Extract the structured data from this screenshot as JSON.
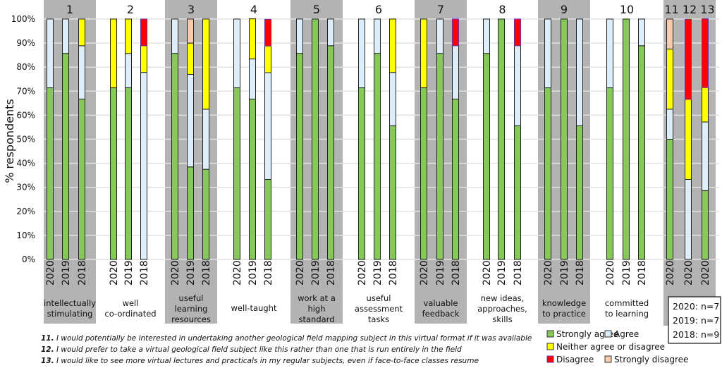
{
  "chart_data": {
    "type": "bar",
    "stacked": true,
    "ylabel": "% respondents",
    "ylim": [
      0,
      100
    ],
    "yticks": [
      "0%",
      "10%",
      "20%",
      "30%",
      "40%",
      "50%",
      "60%",
      "70%",
      "80%",
      "90%",
      "100%"
    ],
    "grid": true,
    "series": [
      {
        "name": "Strongly agree",
        "color": "#86c95a"
      },
      {
        "name": "Agree",
        "color": "#ddeefa"
      },
      {
        "name": "Neither agree or disagree",
        "color": "#ffff00"
      },
      {
        "name": "Disagree",
        "color": "#ff0000"
      },
      {
        "name": "Strongly disagree",
        "color": "#f8cbad"
      }
    ],
    "groups": [
      {
        "number": "1",
        "label": [
          "intellectually",
          "stimulating"
        ],
        "bars": [
          {
            "year": "2020",
            "values": [
              71.4,
              28.6,
              0,
              0,
              0
            ]
          },
          {
            "year": "2019",
            "values": [
              85.7,
              14.3,
              0,
              0,
              0
            ]
          },
          {
            "year": "2018",
            "values": [
              66.7,
              22.2,
              11.1,
              0,
              0
            ]
          }
        ]
      },
      {
        "number": "2",
        "label": [
          "well",
          "co-ordinated"
        ],
        "bars": [
          {
            "year": "2020",
            "values": [
              71.4,
              0,
              28.6,
              0,
              0
            ]
          },
          {
            "year": "2019",
            "values": [
              71.4,
              14.3,
              14.3,
              0,
              0
            ]
          },
          {
            "year": "2018",
            "values": [
              0,
              77.8,
              11.1,
              11.1,
              0
            ]
          }
        ]
      },
      {
        "number": "3",
        "label": [
          "useful",
          "learning",
          "resources"
        ],
        "bars": [
          {
            "year": "2020",
            "values": [
              85.7,
              14.3,
              0,
              0,
              0
            ]
          },
          {
            "year": "2019",
            "values": [
              38.5,
              38.5,
              13.0,
              0,
              10.0
            ]
          },
          {
            "year": "2018",
            "values": [
              37.5,
              25.0,
              37.5,
              0,
              0
            ]
          }
        ]
      },
      {
        "number": "4",
        "label": [
          "well-taught"
        ],
        "bars": [
          {
            "year": "2020",
            "values": [
              71.4,
              28.6,
              0,
              0,
              0
            ]
          },
          {
            "year": "2019",
            "values": [
              66.7,
              16.7,
              16.7,
              0,
              0
            ]
          },
          {
            "year": "2018",
            "values": [
              33.3,
              44.4,
              11.1,
              11.1,
              0
            ]
          }
        ]
      },
      {
        "number": "5",
        "label": [
          "work at a",
          "high",
          "standard"
        ],
        "bars": [
          {
            "year": "2020",
            "values": [
              85.7,
              14.3,
              0,
              0,
              0
            ]
          },
          {
            "year": "2019",
            "values": [
              100,
              0,
              0,
              0,
              0
            ]
          },
          {
            "year": "2018",
            "values": [
              88.9,
              11.1,
              0,
              0,
              0
            ]
          }
        ]
      },
      {
        "number": "6",
        "label": [
          "useful",
          "assessment",
          "tasks"
        ],
        "bars": [
          {
            "year": "2020",
            "values": [
              71.4,
              28.6,
              0,
              0,
              0
            ]
          },
          {
            "year": "2019",
            "values": [
              85.7,
              14.3,
              0,
              0,
              0
            ]
          },
          {
            "year": "2018",
            "values": [
              55.6,
              22.2,
              22.2,
              0,
              0
            ]
          }
        ]
      },
      {
        "number": "7",
        "label": [
          "valuable",
          "feedback"
        ],
        "bars": [
          {
            "year": "2020",
            "values": [
              71.4,
              0,
              28.6,
              0,
              0
            ]
          },
          {
            "year": "2019",
            "values": [
              85.7,
              14.3,
              0,
              0,
              0
            ]
          },
          {
            "year": "2018",
            "values": [
              66.7,
              22.2,
              0,
              11.1,
              0
            ]
          }
        ]
      },
      {
        "number": "8",
        "label": [
          "new ideas,",
          "approaches,",
          "skills"
        ],
        "bars": [
          {
            "year": "2020",
            "values": [
              85.7,
              14.3,
              0,
              0,
              0
            ]
          },
          {
            "year": "2019",
            "values": [
              100,
              0,
              0,
              0,
              0
            ]
          },
          {
            "year": "2018",
            "values": [
              55.6,
              33.3,
              0,
              11.1,
              0
            ]
          }
        ]
      },
      {
        "number": "9",
        "label": [
          "knowledge",
          "to practice"
        ],
        "bars": [
          {
            "year": "2020",
            "values": [
              71.4,
              28.6,
              0,
              0,
              0
            ]
          },
          {
            "year": "2019",
            "values": [
              100,
              0,
              0,
              0,
              0
            ]
          },
          {
            "year": "2018",
            "values": [
              55.6,
              44.4,
              0,
              0,
              0
            ]
          }
        ]
      },
      {
        "number": "10",
        "label": [
          "committed",
          "to learning"
        ],
        "bars": [
          {
            "year": "2020",
            "values": [
              71.4,
              28.6,
              0,
              0,
              0
            ]
          },
          {
            "year": "2019",
            "values": [
              100,
              0,
              0,
              0,
              0
            ]
          },
          {
            "year": "2018",
            "values": [
              88.9,
              11.1,
              0,
              0,
              0
            ]
          }
        ]
      },
      {
        "number": "11 12 13",
        "label": [],
        "bars": [
          {
            "year": "2020",
            "values": [
              50.0,
              12.5,
              25.0,
              0,
              12.5
            ]
          },
          {
            "year": "2020",
            "values": [
              0,
              33.3,
              33.3,
              33.3,
              0
            ]
          },
          {
            "year": "2020",
            "values": [
              28.6,
              28.6,
              14.3,
              28.6,
              0
            ]
          }
        ]
      }
    ]
  },
  "sample_sizes": [
    "2020: n=7",
    "2019: n=7",
    "2018: n=9"
  ],
  "footnotes": [
    {
      "num": "11.",
      "text": "I would potentially be interested in undertaking another geological field mapping subject in this virtual format if it was available"
    },
    {
      "num": "12.",
      "text": "I would prefer to take a virtual geological field subject like this rather than one that is run entirely in the field"
    },
    {
      "num": "13.",
      "text": "I would like to see more virtual lectures and practicals in my regular subjects, even if face-to-face classes resume"
    }
  ]
}
